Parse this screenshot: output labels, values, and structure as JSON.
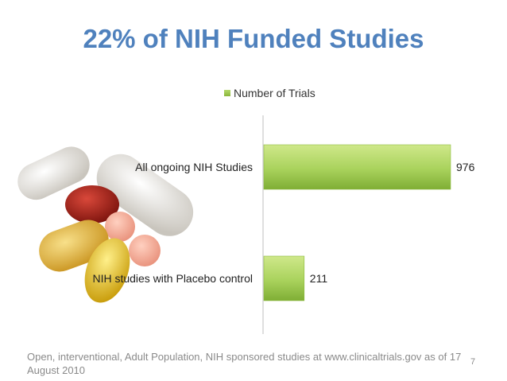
{
  "title": "22% of NIH Funded Studies",
  "footnote": "Open, interventional,  Adult Population, NIH sponsored studies at  www.clinicaltrials.gov as of 17 August 2010",
  "page_number": "7",
  "colors": {
    "title": "#4f81bd",
    "bar_light": "#c6e27e",
    "bar_dark": "#8cbb3c"
  },
  "chart_data": {
    "type": "bar",
    "orientation": "horizontal",
    "categories": [
      "All ongoing NIH Studies",
      "NIH studies with Placebo control"
    ],
    "series": [
      {
        "name": "Number of Trials",
        "values": [
          976,
          211
        ]
      }
    ],
    "legend_position": "top",
    "grid": false,
    "xlim": [
      0,
      1000
    ]
  }
}
